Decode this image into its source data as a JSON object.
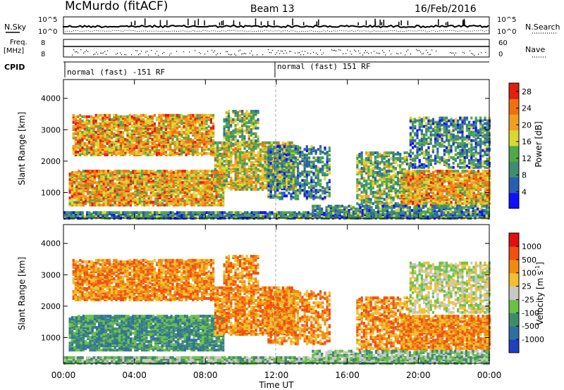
{
  "header": {
    "station": "McMurdo (fitACF)",
    "beam": "Beam 13",
    "date": "16/Feb/2016"
  },
  "top_panels": {
    "nsky_label": "N.Sky",
    "nsearch_label": "N.Search",
    "freq_label_line1": "Freq.",
    "freq_label_line2": "[MHz]",
    "nave_label": "Nave",
    "cpid_label": "CPID",
    "noise_ticks_left": [
      "10^5",
      "10^0"
    ],
    "noise_ticks_right": [
      "10^5",
      "10^0"
    ],
    "freq_ticks": [
      "8",
      "8"
    ],
    "nave_ticks": [
      "60",
      "0"
    ],
    "cpid_segments": [
      {
        "label": "normal (fast) -151 RF",
        "start_hour": 0
      },
      {
        "label": "normal (fast) 151 RF",
        "start_hour": 12
      }
    ]
  },
  "chart_data": [
    {
      "type": "heatmap",
      "title": "",
      "xlabel": "Time UT",
      "ylabel": "Slant Range [km]",
      "x_ticks": [
        "00:00",
        "04:00",
        "08:00",
        "12:00",
        "16:00",
        "20:00",
        "00:00"
      ],
      "xlim_hours": [
        0,
        24
      ],
      "y_ticks": [
        "1000",
        "2000",
        "3000",
        "4000"
      ],
      "ylim_km": [
        180,
        4600
      ],
      "colorbar": {
        "label": "Power [dB]",
        "ticks": [
          "4",
          "8",
          "12",
          "16",
          "20",
          "24",
          "28"
        ],
        "range": [
          0,
          30
        ],
        "colors": [
          "#1010ff",
          "#2a5fb0",
          "#3f8c70",
          "#4fa84a",
          "#d8d832",
          "#f0a020",
          "#f07010",
          "#e02010"
        ]
      }
    },
    {
      "type": "heatmap",
      "title": "",
      "xlabel": "Time UT",
      "ylabel": "Slant Range [km]",
      "x_ticks": [
        "00:00",
        "04:00",
        "08:00",
        "12:00",
        "16:00",
        "20:00",
        "00:00"
      ],
      "xlim_hours": [
        0,
        24
      ],
      "y_ticks": [
        "1000",
        "2000",
        "3000",
        "4000"
      ],
      "ylim_km": [
        180,
        4600
      ],
      "colorbar": {
        "label": "Velocity [m s^-1]",
        "ticks": [
          "1000",
          "500",
          "100",
          "25",
          "-25",
          "-100",
          "-500",
          "-1000"
        ],
        "colors": [
          "#2040c0",
          "#2f70a0",
          "#3f8c6a",
          "#6cc04a",
          "#c8c8c8",
          "#f0c030",
          "#f08a10",
          "#f05010",
          "#e01010"
        ]
      }
    }
  ]
}
